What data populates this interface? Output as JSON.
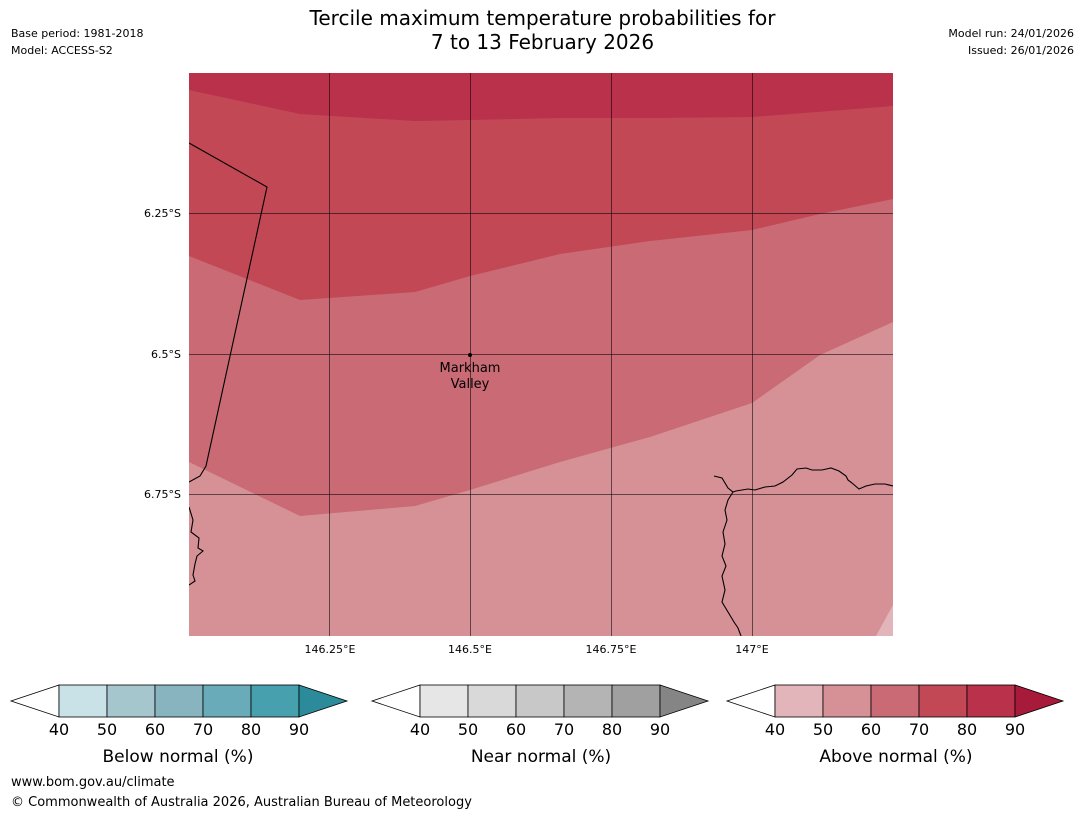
{
  "header": {
    "base_period": "Base period: 1981-2018",
    "model": "Model: ACCESS-S2",
    "model_run": "Model run: 24/01/2026",
    "issued": "Issued: 26/01/2026",
    "title_line1": "Tercile maximum temperature probabilities for",
    "title_line2": "7 to 13 February 2026"
  },
  "map": {
    "lat_labels": [
      "6.25°S",
      "6.5°S",
      "6.75°S"
    ],
    "lon_labels": [
      "146.25°E",
      "146.5°E",
      "146.75°E",
      "147°E"
    ],
    "place": {
      "name_line1": "Markham",
      "name_line2": "Valley",
      "lon": 146.5,
      "lat": -6.5
    },
    "category_shown": "Above normal",
    "zones": [
      {
        "range": "80-90%",
        "color": "#b9314a"
      },
      {
        "range": "70-80%",
        "color": "#c24855"
      },
      {
        "range": "60-70%",
        "color": "#c96a74"
      },
      {
        "range": "50-60%",
        "color": "#d69197"
      },
      {
        "range": "40-50%",
        "color": "#e2b5ba"
      }
    ]
  },
  "legends": [
    {
      "title": "Below normal (%)",
      "ticks": [
        "40",
        "50",
        "60",
        "70",
        "80",
        "90"
      ],
      "colors": [
        "#c9e2e7",
        "#a6c6cd",
        "#88b4c0",
        "#6aabba",
        "#47a0ae",
        "#2b8b9b"
      ]
    },
    {
      "title": "Near normal (%)",
      "ticks": [
        "40",
        "50",
        "60",
        "70",
        "80",
        "90"
      ],
      "colors": [
        "#e6e6e6",
        "#d9d9d9",
        "#c8c8c8",
        "#b4b4b4",
        "#a0a0a0",
        "#858585"
      ]
    },
    {
      "title": "Above normal (%)",
      "ticks": [
        "40",
        "50",
        "60",
        "70",
        "80",
        "90"
      ],
      "colors": [
        "#e2b5ba",
        "#d69197",
        "#c96a74",
        "#c24855",
        "#b9314a",
        "#a81a3a"
      ]
    }
  ],
  "footer": {
    "url": "www.bom.gov.au/climate",
    "copyright": "© Commonwealth of Australia 2026, Australian Bureau of Meteorology"
  }
}
